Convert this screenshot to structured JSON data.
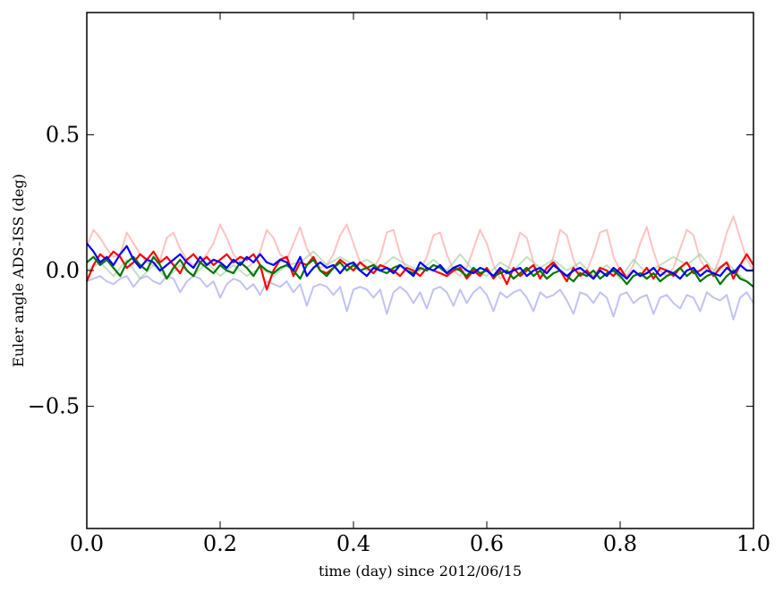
{
  "chart_data": {
    "type": "line",
    "title": "",
    "xlabel": "time (day) since 2012/06/15",
    "ylabel": "Euler angle ADS-ISS (deg)",
    "xlim": [
      0.0,
      1.0
    ],
    "ylim": [
      -0.95,
      0.95
    ],
    "xticks": [
      0.0,
      0.2,
      0.4,
      0.6,
      0.8,
      1.0
    ],
    "xtick_labels": [
      "0.0",
      "0.2",
      "0.4",
      "0.6",
      "0.8",
      "1.0"
    ],
    "yticks": [
      -0.5,
      0.0,
      0.5
    ],
    "ytick_labels": [
      "−0.5",
      "0.0",
      "0.5"
    ],
    "grid": false,
    "legend": "none",
    "series": [
      {
        "color": "#ff9999",
        "opacity": 0.6,
        "x": [
          0.0,
          0.01,
          0.02,
          0.03,
          0.04,
          0.05,
          0.06,
          0.07,
          0.08,
          0.09,
          0.1,
          0.11,
          0.12,
          0.13,
          0.14,
          0.15,
          0.16,
          0.17,
          0.18,
          0.19,
          0.2,
          0.21,
          0.22,
          0.23,
          0.24,
          0.25,
          0.26,
          0.27,
          0.28,
          0.29,
          0.3,
          0.31,
          0.32,
          0.33,
          0.34,
          0.35,
          0.36,
          0.37,
          0.38,
          0.39,
          0.4,
          0.41,
          0.42,
          0.43,
          0.44,
          0.45,
          0.46,
          0.47,
          0.48,
          0.49,
          0.5,
          0.51,
          0.52,
          0.53,
          0.54,
          0.55,
          0.56,
          0.57,
          0.58,
          0.59,
          0.6,
          0.61,
          0.62,
          0.63,
          0.64,
          0.65,
          0.66,
          0.67,
          0.68,
          0.69,
          0.7,
          0.71,
          0.72,
          0.73,
          0.74,
          0.75,
          0.76,
          0.77,
          0.78,
          0.79,
          0.8,
          0.81,
          0.82,
          0.83,
          0.84,
          0.85,
          0.86,
          0.87,
          0.88,
          0.89,
          0.9,
          0.91,
          0.92,
          0.93,
          0.94,
          0.95,
          0.96,
          0.97,
          0.98,
          0.99,
          1.0
        ],
        "y": [
          0.09,
          0.15,
          0.12,
          0.08,
          0.05,
          0.06,
          0.14,
          0.1,
          0.06,
          0.03,
          0.02,
          0.04,
          0.12,
          0.14,
          0.08,
          0.04,
          0.02,
          0.03,
          0.06,
          0.1,
          0.17,
          0.12,
          0.06,
          0.03,
          0.01,
          0.03,
          0.07,
          0.15,
          0.12,
          0.06,
          0.04,
          0.1,
          0.16,
          0.08,
          0.04,
          0.01,
          0.02,
          0.06,
          0.13,
          0.17,
          0.1,
          0.03,
          0.0,
          0.01,
          0.05,
          0.14,
          0.15,
          0.06,
          0.0,
          -0.01,
          0.0,
          0.05,
          0.13,
          0.14,
          0.06,
          0.0,
          -0.02,
          0.01,
          0.08,
          0.15,
          0.1,
          0.02,
          -0.03,
          -0.01,
          0.06,
          0.14,
          0.12,
          0.03,
          -0.02,
          -0.01,
          0.05,
          0.15,
          0.13,
          0.04,
          -0.01,
          0.0,
          0.06,
          0.14,
          0.15,
          0.05,
          0.0,
          -0.02,
          0.02,
          0.1,
          0.16,
          0.07,
          0.0,
          -0.02,
          0.01,
          0.08,
          0.15,
          0.13,
          0.04,
          0.0,
          -0.01,
          0.05,
          0.14,
          0.2,
          0.12,
          0.04,
          0.0
        ]
      },
      {
        "color": "#99cc99",
        "opacity": 0.6,
        "x": [
          0.0,
          0.02,
          0.04,
          0.06,
          0.08,
          0.1,
          0.12,
          0.14,
          0.16,
          0.18,
          0.2,
          0.22,
          0.24,
          0.26,
          0.28,
          0.3,
          0.32,
          0.34,
          0.36,
          0.38,
          0.4,
          0.42,
          0.44,
          0.46,
          0.48,
          0.5,
          0.52,
          0.54,
          0.56,
          0.58,
          0.6,
          0.62,
          0.64,
          0.66,
          0.68,
          0.7,
          0.72,
          0.74,
          0.76,
          0.78,
          0.8,
          0.82,
          0.84,
          0.86,
          0.88,
          0.9,
          0.92,
          0.94,
          0.96,
          0.98,
          1.0
        ],
        "y": [
          0.0,
          0.03,
          -0.02,
          0.04,
          -0.03,
          0.02,
          -0.03,
          0.02,
          -0.02,
          0.03,
          -0.02,
          0.02,
          -0.02,
          0.01,
          -0.02,
          0.02,
          0.03,
          0.07,
          0.02,
          0.05,
          0.02,
          0.04,
          0.01,
          0.05,
          0.02,
          0.0,
          0.04,
          0.0,
          0.06,
          0.0,
          -0.02,
          0.03,
          0.0,
          0.05,
          0.01,
          0.04,
          0.0,
          0.03,
          -0.02,
          0.02,
          -0.03,
          0.04,
          -0.01,
          0.02,
          0.05,
          0.02,
          0.06,
          0.0,
          0.03,
          -0.02,
          -0.06
        ]
      },
      {
        "color": "#9999ee",
        "opacity": 0.6,
        "x": [
          0.0,
          0.01,
          0.02,
          0.03,
          0.04,
          0.05,
          0.06,
          0.07,
          0.08,
          0.09,
          0.1,
          0.11,
          0.12,
          0.13,
          0.14,
          0.15,
          0.16,
          0.17,
          0.18,
          0.19,
          0.2,
          0.21,
          0.22,
          0.23,
          0.24,
          0.25,
          0.26,
          0.27,
          0.28,
          0.29,
          0.3,
          0.31,
          0.32,
          0.33,
          0.34,
          0.35,
          0.36,
          0.37,
          0.38,
          0.39,
          0.4,
          0.41,
          0.42,
          0.43,
          0.44,
          0.45,
          0.46,
          0.47,
          0.48,
          0.49,
          0.5,
          0.51,
          0.52,
          0.53,
          0.54,
          0.55,
          0.56,
          0.57,
          0.58,
          0.59,
          0.6,
          0.61,
          0.62,
          0.63,
          0.64,
          0.65,
          0.66,
          0.67,
          0.68,
          0.69,
          0.7,
          0.71,
          0.72,
          0.73,
          0.74,
          0.75,
          0.76,
          0.77,
          0.78,
          0.79,
          0.8,
          0.81,
          0.82,
          0.83,
          0.84,
          0.85,
          0.86,
          0.87,
          0.88,
          0.89,
          0.9,
          0.91,
          0.92,
          0.93,
          0.94,
          0.95,
          0.96,
          0.97,
          0.98,
          0.99,
          1.0
        ],
        "y": [
          -0.04,
          -0.03,
          -0.02,
          -0.04,
          -0.05,
          -0.03,
          -0.02,
          -0.06,
          -0.03,
          -0.02,
          -0.04,
          -0.05,
          -0.02,
          -0.03,
          -0.08,
          -0.04,
          -0.02,
          -0.03,
          -0.06,
          -0.04,
          -0.1,
          -0.05,
          -0.03,
          -0.04,
          -0.07,
          -0.05,
          -0.09,
          -0.04,
          -0.05,
          -0.06,
          -0.04,
          -0.08,
          -0.05,
          -0.13,
          -0.06,
          -0.05,
          -0.06,
          -0.09,
          -0.06,
          -0.15,
          -0.07,
          -0.06,
          -0.07,
          -0.1,
          -0.07,
          -0.16,
          -0.08,
          -0.06,
          -0.08,
          -0.12,
          -0.08,
          -0.14,
          -0.07,
          -0.06,
          -0.08,
          -0.13,
          -0.07,
          -0.12,
          -0.08,
          -0.06,
          -0.09,
          -0.15,
          -0.08,
          -0.1,
          -0.08,
          -0.07,
          -0.1,
          -0.15,
          -0.08,
          -0.1,
          -0.09,
          -0.07,
          -0.11,
          -0.16,
          -0.08,
          -0.09,
          -0.12,
          -0.08,
          -0.1,
          -0.17,
          -0.09,
          -0.08,
          -0.12,
          -0.1,
          -0.09,
          -0.16,
          -0.1,
          -0.09,
          -0.12,
          -0.14,
          -0.09,
          -0.1,
          -0.15,
          -0.08,
          -0.1,
          -0.11,
          -0.09,
          -0.18,
          -0.1,
          -0.08,
          -0.12
        ]
      },
      {
        "color": "#ff0000",
        "opacity": 1.0,
        "x": [
          0.0,
          0.01,
          0.02,
          0.03,
          0.04,
          0.05,
          0.06,
          0.07,
          0.08,
          0.09,
          0.1,
          0.11,
          0.12,
          0.13,
          0.14,
          0.15,
          0.16,
          0.17,
          0.18,
          0.19,
          0.2,
          0.21,
          0.22,
          0.23,
          0.24,
          0.25,
          0.26,
          0.27,
          0.28,
          0.29,
          0.3,
          0.31,
          0.32,
          0.33,
          0.34,
          0.35,
          0.36,
          0.37,
          0.38,
          0.39,
          0.4,
          0.41,
          0.42,
          0.43,
          0.44,
          0.45,
          0.46,
          0.47,
          0.48,
          0.49,
          0.5,
          0.51,
          0.52,
          0.53,
          0.54,
          0.55,
          0.56,
          0.57,
          0.58,
          0.59,
          0.6,
          0.61,
          0.62,
          0.63,
          0.64,
          0.65,
          0.66,
          0.67,
          0.68,
          0.69,
          0.7,
          0.71,
          0.72,
          0.73,
          0.74,
          0.75,
          0.76,
          0.77,
          0.78,
          0.79,
          0.8,
          0.81,
          0.82,
          0.83,
          0.84,
          0.85,
          0.86,
          0.87,
          0.88,
          0.89,
          0.9,
          0.91,
          0.92,
          0.93,
          0.94,
          0.95,
          0.96,
          0.97,
          0.98,
          0.99,
          1.0
        ],
        "y": [
          -0.04,
          0.02,
          0.06,
          0.04,
          0.07,
          0.05,
          0.01,
          0.03,
          0.06,
          0.04,
          0.07,
          0.03,
          0.05,
          0.02,
          -0.01,
          0.04,
          0.06,
          0.03,
          0.05,
          0.02,
          0.04,
          0.06,
          0.03,
          0.05,
          0.04,
          0.06,
          0.02,
          -0.07,
          0.0,
          0.04,
          0.05,
          -0.02,
          0.03,
          0.02,
          0.05,
          0.0,
          -0.01,
          0.01,
          0.04,
          0.02,
          0.0,
          0.03,
          0.01,
          -0.01,
          0.02,
          0.01,
          0.0,
          -0.02,
          0.01,
          0.0,
          -0.02,
          0.01,
          0.0,
          -0.01,
          -0.02,
          0.0,
          0.01,
          -0.03,
          0.0,
          -0.02,
          0.01,
          -0.03,
          0.0,
          -0.05,
          0.01,
          -0.02,
          0.0,
          0.02,
          -0.03,
          0.01,
          0.03,
          0.0,
          -0.04,
          0.01,
          -0.02,
          0.0,
          -0.03,
          0.01,
          0.0,
          -0.02,
          0.01,
          -0.03,
          0.0,
          -0.02,
          0.01,
          -0.03,
          0.01,
          0.0,
          -0.02,
          0.01,
          0.03,
          -0.01,
          0.0,
          0.02,
          -0.02,
          0.01,
          0.03,
          -0.03,
          0.02,
          0.06,
          0.02
        ]
      },
      {
        "color": "#007700",
        "opacity": 1.0,
        "x": [
          0.0,
          0.01,
          0.02,
          0.03,
          0.04,
          0.05,
          0.06,
          0.07,
          0.08,
          0.09,
          0.1,
          0.11,
          0.12,
          0.13,
          0.14,
          0.15,
          0.16,
          0.17,
          0.18,
          0.19,
          0.2,
          0.21,
          0.22,
          0.23,
          0.24,
          0.25,
          0.26,
          0.27,
          0.28,
          0.29,
          0.3,
          0.31,
          0.32,
          0.33,
          0.34,
          0.35,
          0.36,
          0.37,
          0.38,
          0.39,
          0.4,
          0.41,
          0.42,
          0.43,
          0.44,
          0.45,
          0.46,
          0.47,
          0.48,
          0.49,
          0.5,
          0.51,
          0.52,
          0.53,
          0.54,
          0.55,
          0.56,
          0.57,
          0.58,
          0.59,
          0.6,
          0.61,
          0.62,
          0.63,
          0.64,
          0.65,
          0.66,
          0.67,
          0.68,
          0.69,
          0.7,
          0.71,
          0.72,
          0.73,
          0.74,
          0.75,
          0.76,
          0.77,
          0.78,
          0.79,
          0.8,
          0.81,
          0.82,
          0.83,
          0.84,
          0.85,
          0.86,
          0.87,
          0.88,
          0.89,
          0.9,
          0.91,
          0.92,
          0.93,
          0.94,
          0.95,
          0.96,
          0.97,
          0.98,
          0.99,
          1.0
        ],
        "y": [
          0.03,
          0.05,
          0.02,
          0.04,
          0.01,
          -0.02,
          0.03,
          0.05,
          0.02,
          0.0,
          0.05,
          0.02,
          -0.03,
          0.01,
          0.04,
          0.0,
          -0.02,
          0.03,
          0.01,
          -0.01,
          0.02,
          0.0,
          -0.01,
          0.03,
          0.01,
          -0.02,
          0.02,
          0.0,
          -0.01,
          0.01,
          0.02,
          0.0,
          -0.03,
          0.02,
          0.04,
          0.0,
          -0.02,
          0.01,
          0.03,
          0.0,
          0.02,
          0.0,
          0.01,
          0.02,
          0.0,
          -0.01,
          0.01,
          0.02,
          0.0,
          -0.01,
          0.01,
          0.0,
          0.02,
          0.01,
          -0.01,
          0.01,
          0.0,
          -0.02,
          0.01,
          -0.01,
          0.0,
          -0.02,
          -0.01,
          0.0,
          -0.03,
          -0.01,
          0.01,
          -0.02,
          0.0,
          -0.03,
          -0.01,
          0.0,
          -0.02,
          -0.04,
          -0.01,
          -0.02,
          0.0,
          -0.03,
          -0.01,
          0.0,
          -0.02,
          -0.05,
          -0.02,
          -0.01,
          -0.03,
          -0.01,
          -0.04,
          -0.02,
          -0.01,
          0.01,
          -0.02,
          0.0,
          -0.04,
          -0.02,
          -0.01,
          -0.05,
          -0.02,
          0.0,
          -0.03,
          -0.04,
          -0.06
        ]
      },
      {
        "color": "#0000ff",
        "opacity": 1.0,
        "x": [
          0.0,
          0.01,
          0.02,
          0.03,
          0.04,
          0.05,
          0.06,
          0.07,
          0.08,
          0.09,
          0.1,
          0.11,
          0.12,
          0.13,
          0.14,
          0.15,
          0.16,
          0.17,
          0.18,
          0.19,
          0.2,
          0.21,
          0.22,
          0.23,
          0.24,
          0.25,
          0.26,
          0.27,
          0.28,
          0.29,
          0.3,
          0.31,
          0.32,
          0.33,
          0.34,
          0.35,
          0.36,
          0.37,
          0.38,
          0.39,
          0.4,
          0.41,
          0.42,
          0.43,
          0.44,
          0.45,
          0.46,
          0.47,
          0.48,
          0.49,
          0.5,
          0.51,
          0.52,
          0.53,
          0.54,
          0.55,
          0.56,
          0.57,
          0.58,
          0.59,
          0.6,
          0.61,
          0.62,
          0.63,
          0.64,
          0.65,
          0.66,
          0.67,
          0.68,
          0.69,
          0.7,
          0.71,
          0.72,
          0.73,
          0.74,
          0.75,
          0.76,
          0.77,
          0.78,
          0.79,
          0.8,
          0.81,
          0.82,
          0.83,
          0.84,
          0.85,
          0.86,
          0.87,
          0.88,
          0.89,
          0.9,
          0.91,
          0.92,
          0.93,
          0.94,
          0.95,
          0.96,
          0.97,
          0.98,
          0.99,
          1.0
        ],
        "y": [
          0.1,
          0.07,
          0.03,
          0.05,
          0.02,
          0.06,
          0.09,
          0.04,
          0.01,
          0.04,
          0.03,
          0.0,
          0.02,
          0.04,
          0.06,
          0.03,
          0.01,
          0.05,
          0.02,
          0.04,
          0.03,
          0.01,
          0.04,
          0.02,
          0.05,
          0.03,
          0.06,
          0.03,
          0.02,
          0.04,
          0.03,
          0.0,
          0.05,
          -0.02,
          0.01,
          0.03,
          0.01,
          0.02,
          -0.01,
          0.02,
          0.03,
          0.0,
          -0.02,
          0.01,
          0.0,
          0.01,
          -0.01,
          0.02,
          0.0,
          -0.02,
          0.03,
          0.01,
          0.0,
          0.02,
          -0.01,
          0.01,
          0.02,
          0.0,
          -0.01,
          0.01,
          0.0,
          -0.02,
          0.01,
          -0.01,
          0.0,
          0.01,
          -0.02,
          0.0,
          0.01,
          -0.01,
          0.02,
          0.0,
          -0.02,
          0.0,
          0.01,
          -0.01,
          -0.03,
          0.0,
          -0.02,
          0.01,
          -0.01,
          -0.03,
          0.0,
          -0.02,
          -0.01,
          0.01,
          -0.02,
          0.0,
          -0.01,
          -0.03,
          0.0,
          0.01,
          -0.02,
          0.0,
          -0.01,
          -0.02,
          0.01,
          -0.01,
          0.02,
          0.0,
          0.0
        ]
      }
    ]
  }
}
